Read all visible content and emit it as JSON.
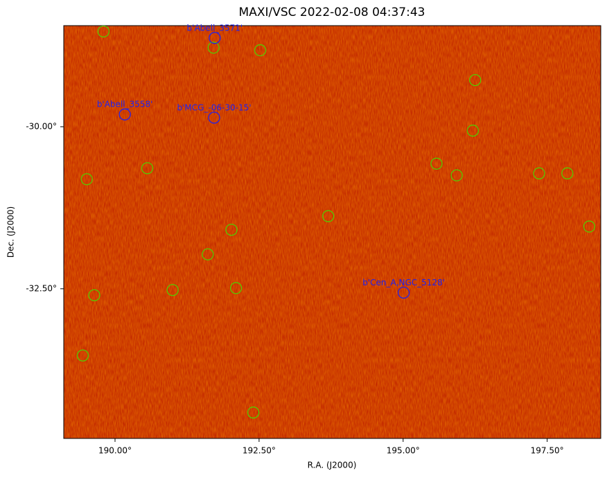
{
  "chart_data": {
    "type": "scatter",
    "title": "MAXI/VSC 2022-02-08 04:37:43",
    "xlabel": "R.A. (J2000)",
    "ylabel": "Dec. (J2000)",
    "xlim": [
      189.11,
      198.43
    ],
    "ylim": [
      -34.81,
      -28.44
    ],
    "xticks": [
      {
        "value": 190,
        "label": "190.00°"
      },
      {
        "value": 192.5,
        "label": "192.50°"
      },
      {
        "value": 195,
        "label": "195.00°"
      },
      {
        "value": 197.5,
        "label": "197.50°"
      }
    ],
    "yticks": [
      {
        "value": -30,
        "label": "-30.00°"
      },
      {
        "value": -32.5,
        "label": "-32.50°"
      }
    ],
    "series": [
      {
        "color": "#55cc00",
        "x": [
          189.8,
          191.71,
          192.52,
          196.25,
          196.21,
          195.58,
          190.56,
          189.51,
          195.93,
          197.36,
          197.85,
          193.7,
          198.23,
          192.02,
          191.61,
          191.0,
          192.1,
          189.64,
          189.44,
          192.4
        ],
        "y": [
          -28.53,
          -28.78,
          -28.82,
          -29.28,
          -30.06,
          -30.57,
          -30.64,
          -30.81,
          -30.75,
          -30.72,
          -30.72,
          -31.38,
          -31.54,
          -31.59,
          -31.97,
          -32.52,
          -32.49,
          -32.6,
          -33.53,
          -34.41
        ]
      }
    ],
    "annotations": [
      {
        "text": "b'Abell_3571'",
        "x": 191.73,
        "y": -28.63,
        "color": "#2222ee"
      },
      {
        "text": "b'Abell_3558'",
        "x": 190.17,
        "y": -29.81,
        "color": "#2222ee"
      },
      {
        "text": "b'MCG_-06-30-15'",
        "x": 191.72,
        "y": -29.86,
        "color": "#2222ee"
      },
      {
        "text": "b'Cen_A,NGC_5128'",
        "x": 195.01,
        "y": -32.56,
        "color": "#2222ee"
      }
    ]
  }
}
